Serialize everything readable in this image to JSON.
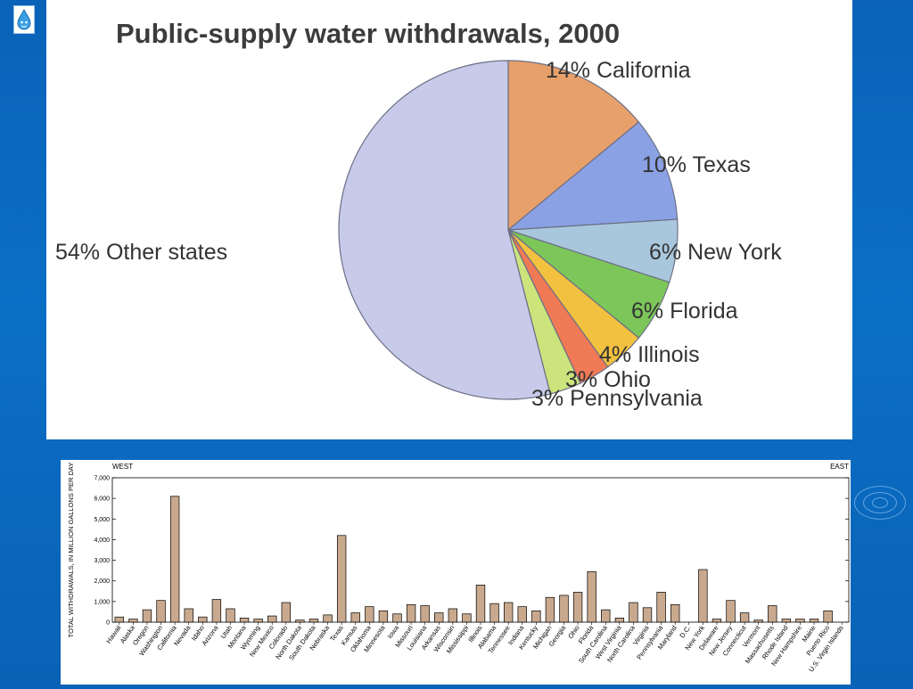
{
  "logo_icon": "water-drop-icon",
  "chart_data": [
    {
      "type": "pie",
      "title": "Public-supply water withdrawals, 2000",
      "slices": [
        {
          "label": "California",
          "value": 14,
          "pct_label": "14%",
          "color": "#e8a06a"
        },
        {
          "label": "Texas",
          "value": 10,
          "pct_label": "10%",
          "color": "#8aa2e4"
        },
        {
          "label": "New York",
          "value": 6,
          "pct_label": "6%",
          "color": "#a9c7dc"
        },
        {
          "label": "Florida",
          "value": 6,
          "pct_label": "6%",
          "color": "#7cc65a"
        },
        {
          "label": "Illinois",
          "value": 4,
          "pct_label": "4%",
          "color": "#f2c13f"
        },
        {
          "label": "Ohio",
          "value": 3,
          "pct_label": "3%",
          "color": "#f07a55"
        },
        {
          "label": "Pennsylvania",
          "value": 3,
          "pct_label": "3%",
          "color": "#cbe57c"
        },
        {
          "label": "Other states",
          "value": 54,
          "pct_label": "54%",
          "color": "#c7cae8"
        }
      ]
    },
    {
      "type": "bar",
      "region_left": "WEST",
      "region_right": "EAST",
      "ylabel": "TOTAL WITHDRAWALS, IN MILLION GALLONS PER DAY",
      "ylim": [
        0,
        7000
      ],
      "yticks": [
        "0",
        "1,000",
        "2,000",
        "3,000",
        "4,000",
        "5,000",
        "6,000",
        "7,000"
      ],
      "bar_color": "#c9a98e",
      "categories": [
        "Hawaii",
        "Alaska",
        "Oregon",
        "Washington",
        "California",
        "Nevada",
        "Idaho",
        "Arizona",
        "Utah",
        "Montana",
        "Wyoming",
        "New Mexico",
        "Colorado",
        "North Dakota",
        "South Dakota",
        "Nebraska",
        "Texas",
        "Kansas",
        "Oklahoma",
        "Minnesota",
        "Iowa",
        "Missouri",
        "Louisiana",
        "Arkansas",
        "Wisconsin",
        "Mississippi",
        "Illinois",
        "Alabama",
        "Tennessee",
        "Indiana",
        "Kentucky",
        "Michigan",
        "Georgia",
        "Ohio",
        "Florida",
        "South Carolina",
        "West Virginia",
        "North Carolina",
        "Virginia",
        "Pennsylvania",
        "Maryland",
        "D.C.",
        "New York",
        "Delaware",
        "New Jersey",
        "Connecticut",
        "Vermont",
        "Massachusetts",
        "Rhode Island",
        "New Hampshire",
        "Maine",
        "Puerto Rico",
        "U.S. Virgin Islands"
      ],
      "values": [
        250,
        150,
        600,
        1050,
        6100,
        650,
        250,
        1100,
        650,
        200,
        150,
        300,
        950,
        100,
        150,
        350,
        4200,
        450,
        750,
        550,
        400,
        850,
        800,
        450,
        650,
        400,
        1800,
        900,
        950,
        750,
        550,
        1200,
        1300,
        1450,
        2450,
        600,
        200,
        950,
        700,
        1450,
        850,
        0,
        2550,
        150,
        1050,
        450,
        100,
        800,
        150,
        150,
        150,
        550,
        0
      ]
    }
  ]
}
